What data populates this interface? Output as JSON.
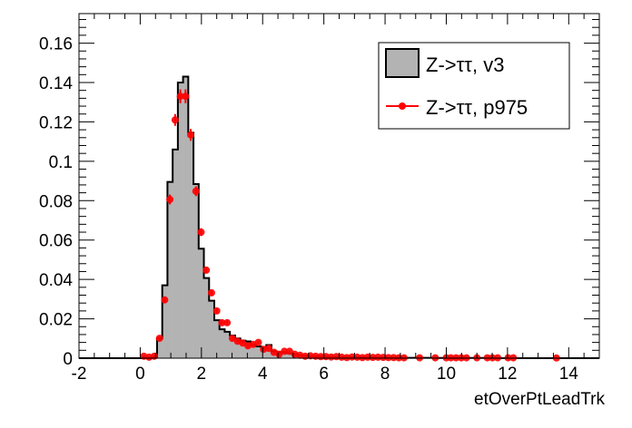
{
  "chart_data": {
    "type": "bar",
    "title": "",
    "xlabel": "etOverPtLeadTrk",
    "ylabel": "",
    "xlim": [
      -2,
      15
    ],
    "ylim": [
      0,
      0.175
    ],
    "x_ticks": [
      "-2",
      "0",
      "2",
      "4",
      "6",
      "8",
      "10",
      "12",
      "14"
    ],
    "x_tick_values": [
      -2,
      0,
      2,
      4,
      6,
      8,
      10,
      12,
      14
    ],
    "y_ticks": [
      "0",
      "0.02",
      "0.04",
      "0.06",
      "0.08",
      "0.1",
      "0.12",
      "0.14",
      "0.16"
    ],
    "y_tick_values": [
      0,
      0.02,
      0.04,
      0.06,
      0.08,
      0.1,
      0.12,
      0.14,
      0.16
    ],
    "grid": false,
    "legend_position": "top-right",
    "histogram": {
      "name": "Z->ττ, v3",
      "color": "#b3b3b3",
      "bin_width": 0.17,
      "first_bin_low": 0.38,
      "values": [
        0.0005,
        0.01,
        0.037,
        0.0895,
        0.106,
        0.14,
        0.143,
        0.1145,
        0.0884,
        0.0556,
        0.0407,
        0.0292,
        0.0193,
        0.0147,
        0.0134,
        0.0115,
        0.01,
        0.0089,
        0.0085,
        0.0067,
        0.006,
        0.0053,
        0.0067,
        0.0035,
        0.003,
        0.003,
        0.0025,
        0.002,
        0.0015,
        0.0012,
        0.001,
        0.001,
        0.0009,
        0.0008,
        0.0007,
        0.0007,
        0.0006,
        0.0006,
        0.0005,
        0.0005,
        0.0004,
        0.0004,
        0.0004,
        0.0003,
        0.0003,
        0.0003,
        0.0003,
        0.0002,
        0.0002,
        0.0002,
        0.0002,
        0.0002,
        0.0002,
        0.0002,
        0.0001,
        0.0001,
        0.0001,
        0.0001,
        0.0001,
        0.0001,
        0.0001,
        0.0001,
        0.0001,
        0.0001,
        0.0001
      ]
    },
    "series": [
      {
        "name": "Z->ττ, p975",
        "color": "#ff0000",
        "x": [
          0.12,
          0.29,
          0.46,
          0.63,
          0.8,
          0.97,
          1.14,
          1.31,
          1.48,
          1.65,
          1.82,
          1.99,
          2.16,
          2.33,
          2.5,
          2.67,
          2.84,
          3.01,
          3.18,
          3.35,
          3.52,
          3.69,
          3.86,
          4.03,
          4.2,
          4.37,
          4.54,
          4.71,
          4.88,
          5.05,
          5.22,
          5.39,
          5.56,
          5.73,
          5.9,
          6.07,
          6.24,
          6.41,
          6.58,
          6.75,
          6.92,
          7.09,
          7.26,
          7.43,
          7.6,
          7.77,
          7.94,
          8.11,
          8.28,
          8.45,
          8.62,
          9.13,
          9.64,
          10.0,
          10.15,
          10.32,
          10.49,
          10.66,
          11.0,
          11.34,
          11.51,
          11.68,
          12.02,
          12.19,
          13.6
        ],
        "y": [
          0.001,
          0.0005,
          0.001,
          0.0101,
          0.0296,
          0.0806,
          0.121,
          0.133,
          0.133,
          0.1134,
          0.0848,
          0.064,
          0.0447,
          0.0332,
          0.024,
          0.018,
          0.018,
          0.0101,
          0.0086,
          0.0077,
          0.0063,
          0.007,
          0.008,
          0.0045,
          0.005,
          0.003,
          0.002,
          0.0035,
          0.0035,
          0.002,
          0.0015,
          0.001,
          0.0012,
          0.001,
          0.0008,
          0.0008,
          0.0006,
          0.0008,
          0.0005,
          0.0003,
          0.0006,
          0.0005,
          0.0003,
          0.0005,
          0.0004,
          0.0005,
          0.0004,
          0.0003,
          0.0003,
          0.0002,
          0.0002,
          0.0002,
          0.0002,
          0.0002,
          0.0002,
          0.0002,
          0.0002,
          0.0002,
          0.0002,
          0.0002,
          0.0002,
          0.0002,
          0.0002,
          0.0002,
          0.0001
        ],
        "yerr": [
          0.0005,
          0.0005,
          0.0005,
          0.001,
          0.0015,
          0.0025,
          0.003,
          0.0035,
          0.0035,
          0.003,
          0.0025,
          0.002,
          0.0017,
          0.0015,
          0.0012,
          0.001,
          0.001,
          0.0008,
          0.0007,
          0.0007,
          0.0006,
          0.0006,
          0.0006,
          0.0005,
          0.0005,
          0.0004,
          0.0003,
          0.0004,
          0.0004,
          0.0003,
          0.0003,
          0.0002,
          0.0002,
          0.0002,
          0.0002,
          0.0002,
          0.0002,
          0.0002,
          0.0002,
          0.0001,
          0.0002,
          0.0002,
          0.0001,
          0.0002,
          0.0001,
          0.0002,
          0.0001,
          0.0001,
          0.0001,
          0.0001,
          0.0001,
          0.0001,
          0.0001,
          0.0001,
          0.0001,
          0.0001,
          0.0001,
          0.0001,
          0.0001,
          0.0001,
          0.0001,
          0.0001,
          0.0001,
          0.0001,
          0.0001
        ]
      }
    ]
  }
}
